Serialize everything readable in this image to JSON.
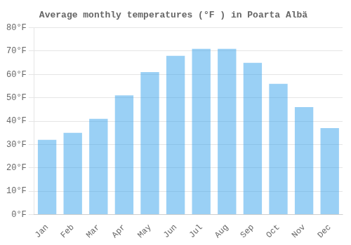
{
  "chart_data": {
    "type": "bar",
    "title": "Average monthly temperatures (°F ) in Poarta Albä",
    "categories": [
      "Jan",
      "Feb",
      "Mar",
      "Apr",
      "May",
      "Jun",
      "Jul",
      "Aug",
      "Sep",
      "Oct",
      "Nov",
      "Dec"
    ],
    "values": [
      32,
      35,
      41,
      51,
      61,
      68,
      71,
      71,
      65,
      56,
      46,
      37
    ],
    "ylim": [
      0,
      80
    ],
    "yticks": [
      {
        "value": 0,
        "label": "0°F"
      },
      {
        "value": 10,
        "label": "10°F"
      },
      {
        "value": 20,
        "label": "20°F"
      },
      {
        "value": 30,
        "label": "30°F"
      },
      {
        "value": 40,
        "label": "40°F"
      },
      {
        "value": 50,
        "label": "50°F"
      },
      {
        "value": 60,
        "label": "60°F"
      },
      {
        "value": 70,
        "label": "70°F"
      },
      {
        "value": 80,
        "label": "80°F"
      }
    ],
    "grid": true
  }
}
